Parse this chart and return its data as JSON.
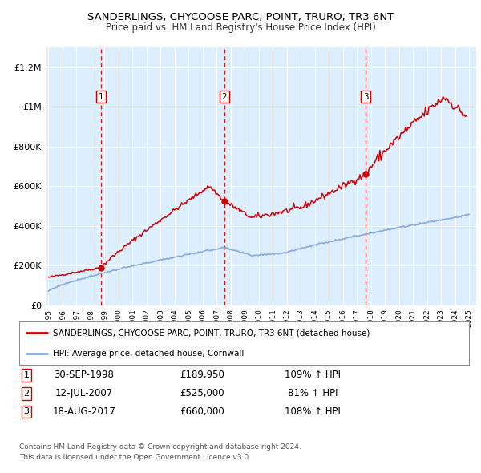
{
  "title": "SANDERLINGS, CHYCOOSE PARC, POINT, TRURO, TR3 6NT",
  "subtitle": "Price paid vs. HM Land Registry's House Price Index (HPI)",
  "xlim": [
    1994.8,
    2025.5
  ],
  "ylim": [
    0,
    1300000
  ],
  "yticks": [
    0,
    200000,
    400000,
    600000,
    800000,
    1000000,
    1200000
  ],
  "ytick_labels": [
    "£0",
    "£200K",
    "£400K",
    "£600K",
    "£800K",
    "£1M",
    "£1.2M"
  ],
  "sales": [
    {
      "year": 1998.75,
      "price": 189950,
      "label": "1"
    },
    {
      "year": 2007.53,
      "price": 525000,
      "label": "2"
    },
    {
      "year": 2017.63,
      "price": 660000,
      "label": "3"
    }
  ],
  "sale_dates": [
    "30-SEP-1998",
    "12-JUL-2007",
    "18-AUG-2017"
  ],
  "sale_prices": [
    "£189,950",
    "£525,000",
    "£660,000"
  ],
  "sale_hpi": [
    "109% ↑ HPI",
    "81% ↑ HPI",
    "108% ↑ HPI"
  ],
  "legend_label_red": "SANDERLINGS, CHYCOOSE PARC, POINT, TRURO, TR3 6NT (detached house)",
  "legend_label_blue": "HPI: Average price, detached house, Cornwall",
  "footer1": "Contains HM Land Registry data © Crown copyright and database right 2024.",
  "footer2": "This data is licensed under the Open Government Licence v3.0.",
  "red_color": "#cc0000",
  "blue_color": "#88aadd",
  "bg_color": "#ddeeff",
  "grid_color": "#ffffff"
}
